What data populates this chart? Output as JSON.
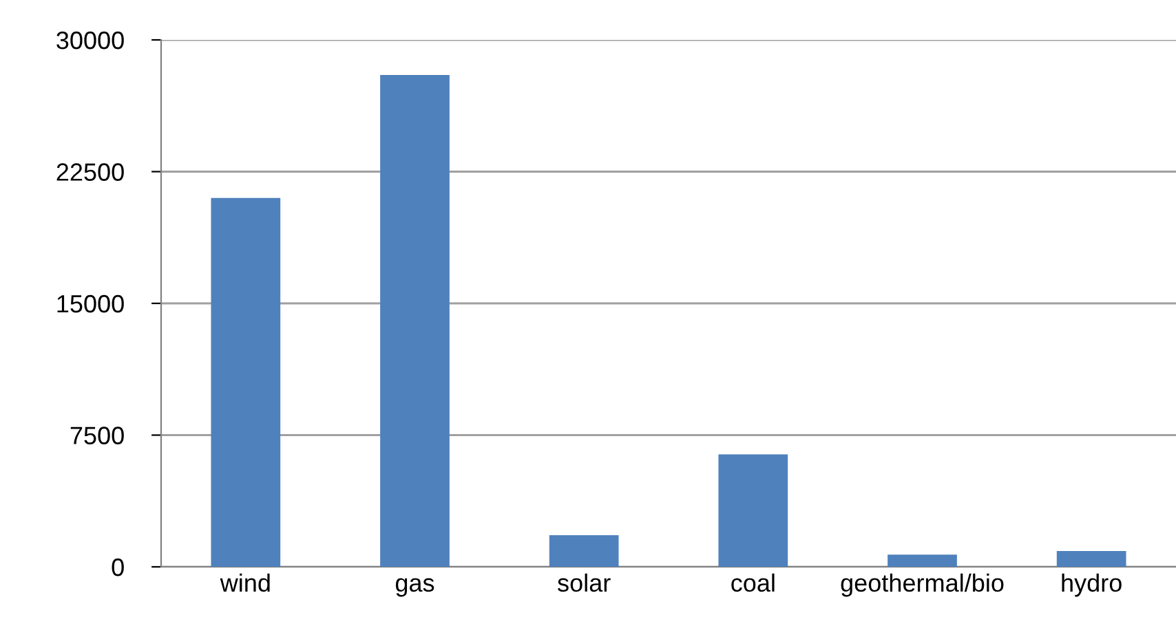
{
  "chart_data": {
    "type": "bar",
    "categories": [
      "wind",
      "gas",
      "solar",
      "coal",
      "geothermal/bio",
      "hydro"
    ],
    "values": [
      21000,
      28000,
      1800,
      6400,
      700,
      900
    ],
    "color": "#4f81bd",
    "ylim": [
      0,
      30000
    ],
    "yticks": [
      0,
      7500,
      15000,
      22500,
      30000
    ],
    "grid": "y"
  }
}
